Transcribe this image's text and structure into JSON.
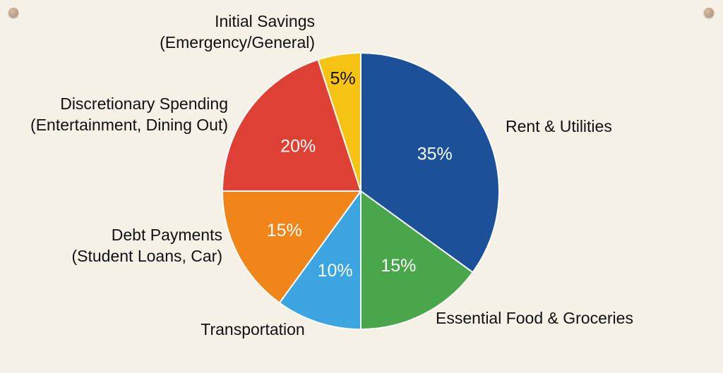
{
  "chart_data": {
    "type": "pie",
    "title": "",
    "slices": [
      {
        "label_lines": [
          "Rent & Utilities"
        ],
        "value": 35,
        "value_label": "35%",
        "color": "#1c519a"
      },
      {
        "label_lines": [
          "Essential Food & Groceries"
        ],
        "value": 15,
        "value_label": "15%",
        "color": "#4aa64a"
      },
      {
        "label_lines": [
          "Transportation"
        ],
        "value": 10,
        "value_label": "10%",
        "color": "#3aa5e0"
      },
      {
        "label_lines": [
          "Debt Payments",
          "(Student Loans, Car)"
        ],
        "value": 15,
        "value_label": "15%",
        "color": "#f08519"
      },
      {
        "label_lines": [
          "Discretionary Spending",
          "(Entertainment, Dining Out)"
        ],
        "value": 20,
        "value_label": "20%",
        "color": "#df4034"
      },
      {
        "label_lines": [
          "Initial Savings",
          "(Emergency/General)"
        ],
        "value": 5,
        "value_label": "5%",
        "color": "#f7c312"
      }
    ]
  },
  "colors": {
    "background": "#f6f1e7",
    "slice_stroke": "#ffffff",
    "label_text": "#111111",
    "value_text_light": "#ffffff",
    "value_text_dark": "#111111"
  }
}
